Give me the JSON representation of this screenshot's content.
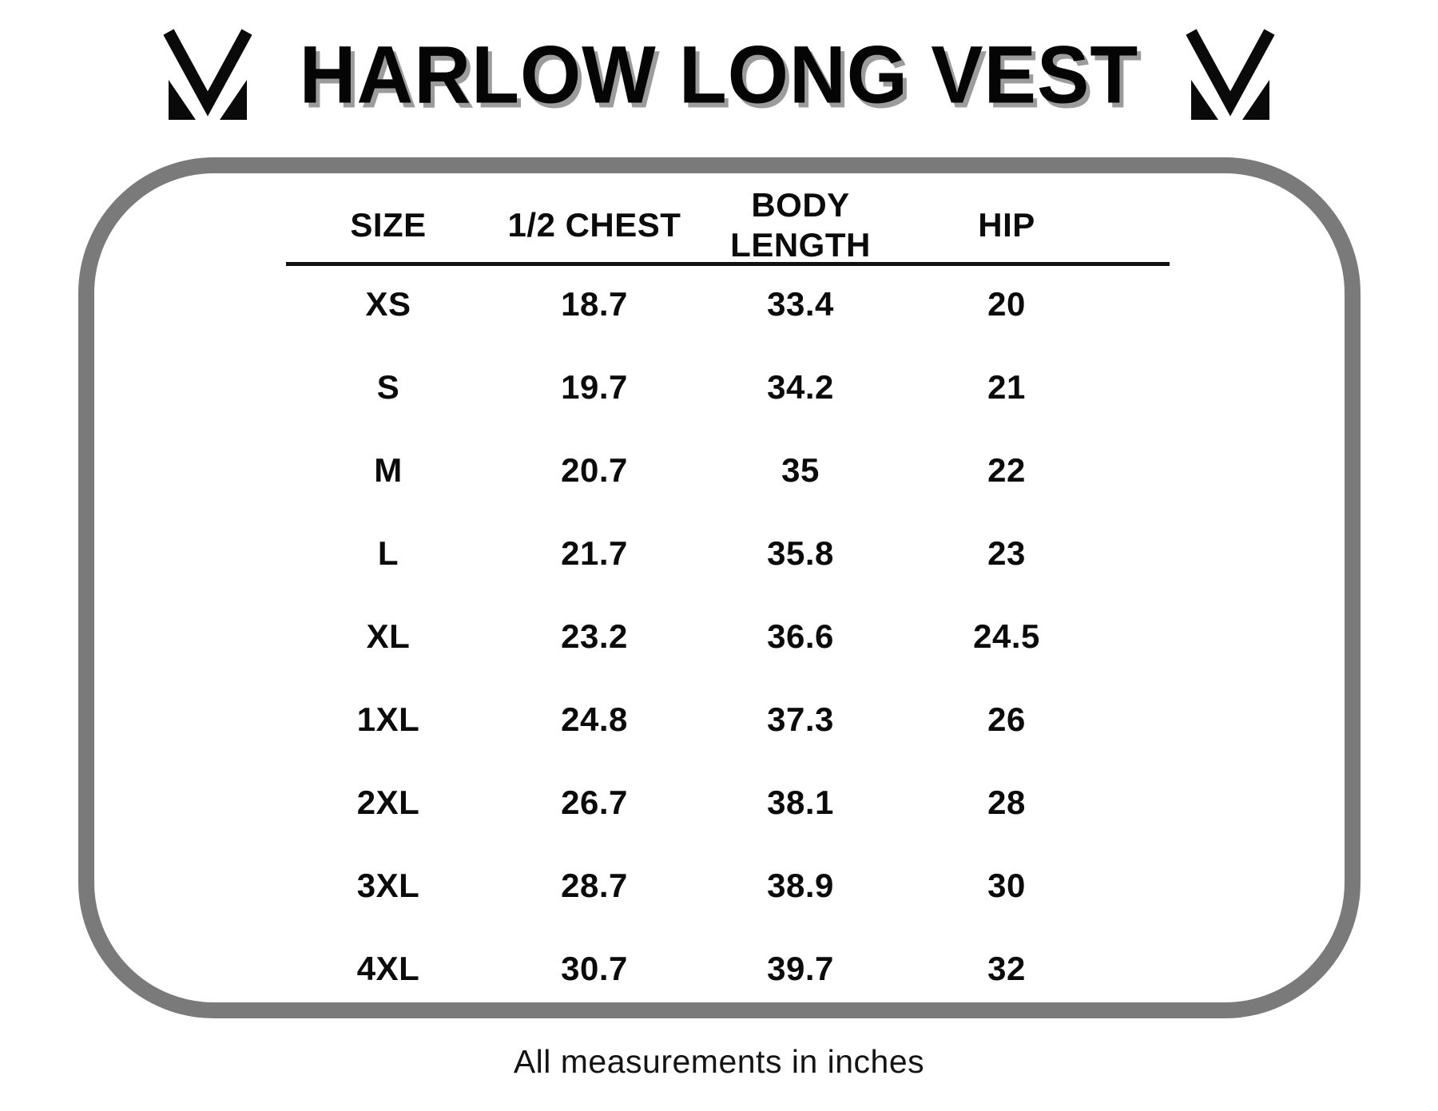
{
  "header": {
    "title": "HARLOW LONG VEST"
  },
  "logo": {
    "label": "M monogram logo"
  },
  "footer": {
    "note": "All measurements in inches"
  },
  "colors": {
    "background": "#ffffff",
    "text": "#0b0b0b",
    "title_shadow": "#9c9c9c",
    "frame_border": "#7a7a7a",
    "header_rule": "#111111"
  },
  "chart_data": {
    "type": "table",
    "title": "HARLOW LONG VEST",
    "columns": [
      "SIZE",
      "1/2 CHEST",
      "BODY LENGTH",
      "HIP"
    ],
    "rows": [
      [
        "XS",
        "18.7",
        "33.4",
        "20"
      ],
      [
        "S",
        "19.7",
        "34.2",
        "21"
      ],
      [
        "M",
        "20.7",
        "35",
        "22"
      ],
      [
        "L",
        "21.7",
        "35.8",
        "23"
      ],
      [
        "XL",
        "23.2",
        "36.6",
        "24.5"
      ],
      [
        "1XL",
        "24.8",
        "37.3",
        "26"
      ],
      [
        "2XL",
        "26.7",
        "38.1",
        "28"
      ],
      [
        "3XL",
        "28.7",
        "38.9",
        "30"
      ],
      [
        "4XL",
        "30.7",
        "39.7",
        "32"
      ]
    ],
    "units": "inches",
    "note": "All measurements in inches",
    "legend": false,
    "grid": false
  }
}
